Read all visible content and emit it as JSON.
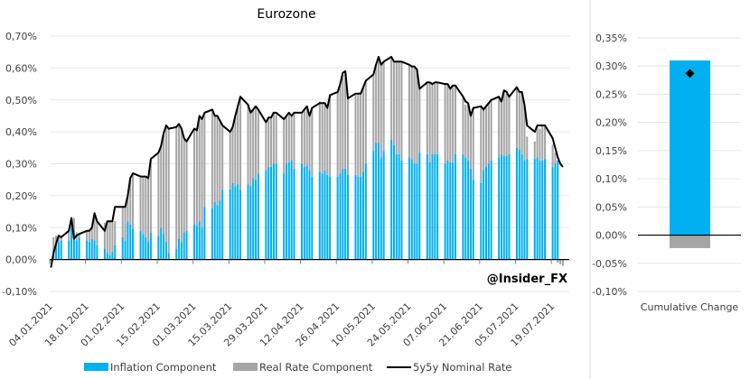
{
  "chart_data": [
    {
      "type": "bar",
      "title": "Eurozone",
      "watermark": "@Insider_FX",
      "xlabel": "",
      "ylabel": "",
      "ylim": [
        -0.1,
        0.7
      ],
      "y_unit": "%",
      "yticks": [
        "-0,10%",
        "0,00%",
        "0,10%",
        "0,20%",
        "0,30%",
        "0,40%",
        "0,50%",
        "0,60%",
        "0,70%"
      ],
      "ytick_values": [
        -0.1,
        0.0,
        0.1,
        0.2,
        0.3,
        0.4,
        0.5,
        0.6,
        0.7
      ],
      "xtick_labels": [
        "04.01.2021",
        "18.01.2021",
        "01.02.2021",
        "15.02.2021",
        "01.03.2021",
        "15.03.2021",
        "29.03.2021",
        "12.04.2021",
        "26.04.2021",
        "10.05.2021",
        "24.05.2021",
        "07.06.2021",
        "21.06.2021",
        "05.07.2021",
        "19.07.2021"
      ],
      "bars_between_ticks": 10,
      "grid": true,
      "stacked": true,
      "legend_position": "bottom",
      "series": [
        {
          "name": "Inflation Component",
          "kind": "bar",
          "color": "#00B0F0",
          "values": [
            0.0,
            0.03,
            0.05,
            0.055,
            0.06,
            0.06,
            0.1,
            0.09,
            0.06,
            0.07,
            0.06,
            0.055,
            0.065,
            0.06,
            0.045,
            0.035,
            0.02,
            0.015,
            0.025,
            0.045,
            0.07,
            0.06,
            0.12,
            0.11,
            0.095,
            0.09,
            0.08,
            0.07,
            0.055,
            0.085,
            0.075,
            0.1,
            0.08,
            0.055,
            0.02,
            0.035,
            0.065,
            0.055,
            0.085,
            0.09,
            0.11,
            0.105,
            0.12,
            0.1,
            0.165,
            0.16,
            0.18,
            0.17,
            0.185,
            0.22,
            0.22,
            0.24,
            0.23,
            0.235,
            0.22,
            0.235,
            0.23,
            0.255,
            0.25,
            0.27,
            0.28,
            0.29,
            0.29,
            0.3,
            0.3,
            0.27,
            0.3,
            0.305,
            0.31,
            0.285,
            0.3,
            0.29,
            0.295,
            0.28,
            0.26,
            0.275,
            0.27,
            0.28,
            0.265,
            0.26,
            0.26,
            0.27,
            0.285,
            0.285,
            0.265,
            0.265,
            0.26,
            0.26,
            0.275,
            0.3,
            0.34,
            0.365,
            0.365,
            0.32,
            0.34,
            0.375,
            0.36,
            0.33,
            0.33,
            0.31,
            0.32,
            0.315,
            0.3,
            0.3,
            0.335,
            0.33,
            0.305,
            0.33,
            0.33,
            0.33,
            0.3,
            0.31,
            0.305,
            0.305,
            0.33,
            0.33,
            0.32,
            0.31,
            0.285,
            0.25,
            0.24,
            0.28,
            0.29,
            0.3,
            0.31,
            0.32,
            0.33,
            0.325,
            0.325,
            0.33,
            0.35,
            0.345,
            0.33,
            0.31,
            0.315,
            0.315,
            0.32,
            0.31,
            0.31,
            0.315,
            0.29,
            0.3,
            0.31
          ],
          "note": "Stacked bars; gaps between weekly groups are weekends"
        },
        {
          "name": "Real Rate Component",
          "kind": "bar",
          "color": "#A5A5A5",
          "values": [
            -0.005,
            0.04,
            0.025,
            0.02,
            0.015,
            0.03,
            0.03,
            0.04,
            0.025,
            0.01,
            0.03,
            0.035,
            0.035,
            0.07,
            0.075,
            0.08,
            0.1,
            0.105,
            0.095,
            0.075,
            0.095,
            0.105,
            0.08,
            0.145,
            0.175,
            0.17,
            0.18,
            0.19,
            0.2,
            0.23,
            0.26,
            0.255,
            0.315,
            0.365,
            0.39,
            0.38,
            0.36,
            0.355,
            0.295,
            0.28,
            0.3,
            0.3,
            0.33,
            0.34,
            0.295,
            0.31,
            0.27,
            0.28,
            0.25,
            0.2,
            0.18,
            0.175,
            0.22,
            0.245,
            0.29,
            0.25,
            0.23,
            0.215,
            0.23,
            0.2,
            0.15,
            0.155,
            0.155,
            0.16,
            0.16,
            0.17,
            0.15,
            0.155,
            0.14,
            0.175,
            0.16,
            0.18,
            0.185,
            0.17,
            0.215,
            0.22,
            0.22,
            0.21,
            0.21,
            0.255,
            0.265,
            0.28,
            0.3,
            0.305,
            0.24,
            0.255,
            0.26,
            0.26,
            0.265,
            0.26,
            0.24,
            0.245,
            0.27,
            0.29,
            0.28,
            0.26,
            0.26,
            0.29,
            0.29,
            0.31,
            0.29,
            0.29,
            0.305,
            0.295,
            0.2,
            0.225,
            0.25,
            0.22,
            0.225,
            0.225,
            0.25,
            0.24,
            0.23,
            0.24,
            0.215,
            0.18,
            0.165,
            0.18,
            0.165,
            0.225,
            0.24,
            0.19,
            0.19,
            0.19,
            0.19,
            0.19,
            0.165,
            0.205,
            0.195,
            0.18,
            0.19,
            0.18,
            0.195,
            0.175,
            0.07,
            0.055,
            0.1,
            0.1,
            0.11,
            0.105,
            0.07,
            0.035,
            -0.01,
            -0.015,
            -0.02
          ],
          "note": "Stacked on top of inflation component"
        },
        {
          "name": "5y5y Nominal Rate",
          "kind": "line",
          "color": "#000000",
          "values": [
            -0.025,
            0.02,
            0.05,
            0.075,
            0.07,
            0.09,
            0.13,
            0.065,
            0.075,
            0.08,
            0.09,
            0.09,
            0.1,
            0.145,
            0.12,
            0.09,
            0.12,
            0.12,
            0.12,
            0.165,
            0.165,
            0.165,
            0.2,
            0.255,
            0.27,
            0.26,
            0.26,
            0.26,
            0.255,
            0.315,
            0.335,
            0.355,
            0.395,
            0.42,
            0.41,
            0.415,
            0.425,
            0.41,
            0.38,
            0.37,
            0.41,
            0.405,
            0.45,
            0.44,
            0.46,
            0.47,
            0.45,
            0.45,
            0.435,
            0.42,
            0.4,
            0.415,
            0.45,
            0.48,
            0.51,
            0.485,
            0.46,
            0.47,
            0.48,
            0.47,
            0.43,
            0.445,
            0.445,
            0.46,
            0.46,
            0.44,
            0.45,
            0.46,
            0.45,
            0.46,
            0.46,
            0.47,
            0.48,
            0.45,
            0.475,
            0.49,
            0.49,
            0.49,
            0.475,
            0.515,
            0.525,
            0.55,
            0.585,
            0.59,
            0.505,
            0.52,
            0.52,
            0.52,
            0.54,
            0.56,
            0.58,
            0.61,
            0.635,
            0.61,
            0.62,
            0.635,
            0.62,
            0.62,
            0.62,
            0.62,
            0.61,
            0.605,
            0.605,
            0.595,
            0.535,
            0.555,
            0.555,
            0.55,
            0.555,
            0.555,
            0.55,
            0.55,
            0.535,
            0.545,
            0.545,
            0.51,
            0.495,
            0.49,
            0.45,
            0.475,
            0.48,
            0.47,
            0.48,
            0.49,
            0.5,
            0.51,
            0.495,
            0.53,
            0.525,
            0.51,
            0.54,
            0.525,
            0.525,
            0.485,
            0.42,
            0.4,
            0.42,
            0.42,
            0.42,
            0.42,
            0.38,
            0.35,
            0.32,
            0.3,
            0.29
          ]
        }
      ]
    },
    {
      "type": "bar",
      "title": "",
      "ylim": [
        -0.1,
        0.35
      ],
      "y_unit": "%",
      "yticks": [
        "-0,10%",
        "-0,05%",
        "0,00%",
        "0,05%",
        "0,10%",
        "0,15%",
        "0,20%",
        "0,25%",
        "0,30%",
        "0,35%"
      ],
      "ytick_values": [
        -0.1,
        -0.05,
        0.0,
        0.05,
        0.1,
        0.15,
        0.2,
        0.25,
        0.3,
        0.35
      ],
      "categories": [
        "Cumulative Change"
      ],
      "grid": true,
      "series": [
        {
          "name": "Inflation Component",
          "kind": "bar",
          "color": "#00B0F0",
          "values": [
            0.31
          ]
        },
        {
          "name": "Real Rate Component",
          "kind": "bar",
          "color": "#A5A5A5",
          "values": [
            -0.023
          ]
        },
        {
          "name": "5y5y Nominal Rate",
          "kind": "marker",
          "marker": "diamond",
          "color": "#000000",
          "values": [
            0.287
          ]
        }
      ]
    }
  ],
  "legend": [
    {
      "label": "Inflation Component",
      "type": "box",
      "color": "#00B0F0"
    },
    {
      "label": "Real Rate Component",
      "type": "box",
      "color": "#A5A5A5"
    },
    {
      "label": "5y5y Nominal Rate",
      "type": "line",
      "color": "#000000"
    }
  ],
  "colors": {
    "grid": "#E6E6E6",
    "axis": "#000000",
    "divider": "#D9D9D9"
  }
}
